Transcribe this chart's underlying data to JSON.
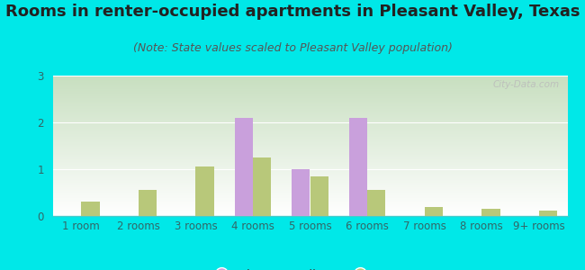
{
  "title": "Rooms in renter-occupied apartments in Pleasant Valley, Texas",
  "subtitle": "(Note: State values scaled to Pleasant Valley population)",
  "categories": [
    "1 room",
    "2 rooms",
    "3 rooms",
    "4 rooms",
    "5 rooms",
    "6 rooms",
    "7 rooms",
    "8 rooms",
    "9+ rooms"
  ],
  "pleasant_valley": [
    0,
    0,
    0,
    2.1,
    1.0,
    2.1,
    0,
    0,
    0
  ],
  "texas": [
    0.3,
    0.55,
    1.05,
    1.25,
    0.85,
    0.55,
    0.2,
    0.15,
    0.12
  ],
  "pv_color": "#c9a0dc",
  "tx_color": "#b8c87a",
  "bg_outer": "#00e8e8",
  "ylim": [
    0,
    3
  ],
  "yticks": [
    0,
    1,
    2,
    3
  ],
  "title_fontsize": 13,
  "subtitle_fontsize": 9,
  "tick_fontsize": 8.5,
  "legend_label_pv": "Pleasant Valley",
  "legend_label_tx": "Texas",
  "watermark": "City-Data.com",
  "bar_width": 0.32,
  "chart_gradient_top": "#c8dfc0",
  "chart_gradient_bottom": "#ffffff"
}
